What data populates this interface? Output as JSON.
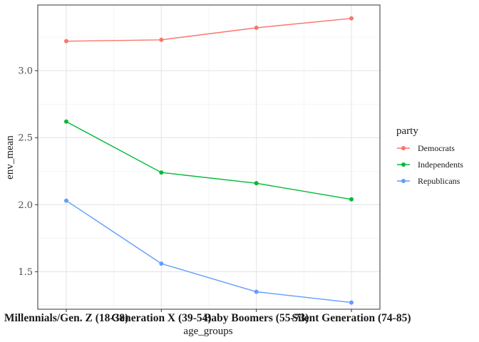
{
  "chart_data": {
    "type": "line",
    "xlabel": "age_groups",
    "ylabel": "env_mean",
    "categories": [
      "Millennials/Gen. Z (18-38)",
      "Generation X (39-54)",
      "Baby Boomers (55-73)",
      "Silent Generation (74-85)"
    ],
    "ylim": [
      1.22,
      3.49
    ],
    "yticks": [
      "1.5",
      "2.0",
      "2.5",
      "3.0"
    ],
    "grid": true,
    "legend_title": "party",
    "legend_position": "right",
    "series": [
      {
        "name": "Democrats",
        "color": "#F8766D",
        "values": [
          3.22,
          3.23,
          3.32,
          3.39
        ]
      },
      {
        "name": "Independents",
        "color": "#00BA38",
        "values": [
          2.62,
          2.24,
          2.16,
          2.04
        ]
      },
      {
        "name": "Republicans",
        "color": "#619CFF",
        "values": [
          2.03,
          1.56,
          1.35,
          1.27
        ]
      }
    ]
  }
}
